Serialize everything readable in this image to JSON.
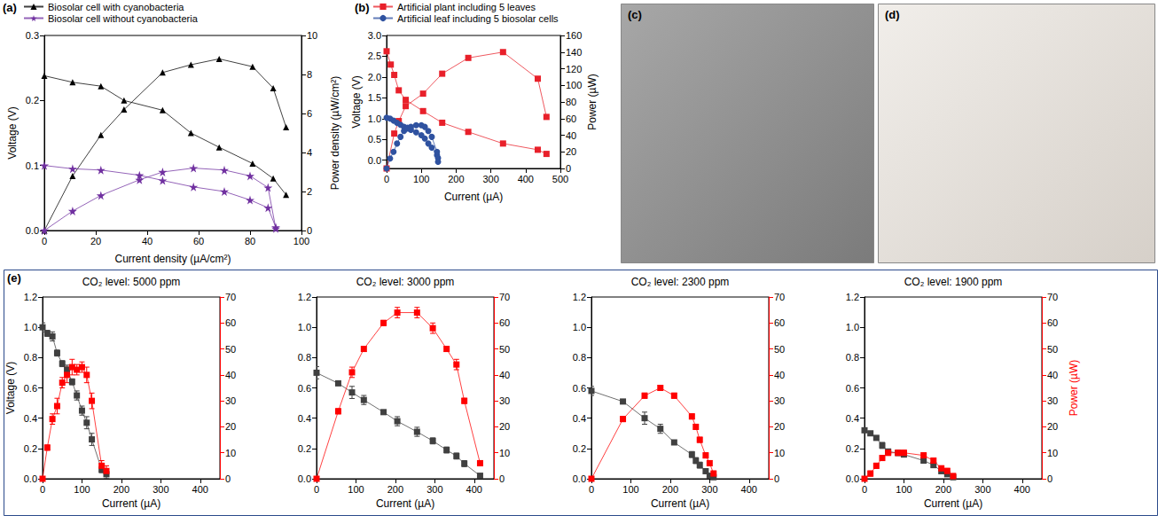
{
  "chart_data": [
    {
      "type": "line",
      "panel": "(a)",
      "legend": "top left",
      "grid": false,
      "xlabel": "Current density (µA/cm²)",
      "ylabel": "Voltage (V)",
      "y2label": "Power density (µW/cm²)",
      "xlim": [
        0,
        100
      ],
      "xticks": [
        0,
        20,
        40,
        60,
        80,
        100
      ],
      "ylim": [
        0,
        0.3
      ],
      "yticks": [
        {
          "value": 0,
          "label": "0.0"
        },
        0.1,
        0.2,
        0.3
      ],
      "y2lim": [
        0,
        10
      ],
      "y2ticks": [
        0,
        2,
        4,
        6,
        8,
        10
      ],
      "series": [
        {
          "name": "Biosolar cell with cyanobacteria",
          "color": "#000000",
          "marker": "triangle",
          "axis": "y",
          "x": [
            0,
            11,
            22,
            31,
            46,
            57,
            68,
            81,
            89,
            94
          ],
          "values": [
            0.238,
            0.228,
            0.222,
            0.2,
            0.185,
            0.15,
            0.128,
            0.103,
            0.08,
            0.055
          ]
        },
        {
          "name": "Biosolar cell with cyanobacteria",
          "color": "#000000",
          "marker": "triangle",
          "axis": "y2",
          "x": [
            0,
            11,
            22,
            31,
            46,
            57,
            68,
            81,
            89,
            94
          ],
          "values": [
            0,
            2.8,
            4.9,
            6.2,
            8.1,
            8.5,
            8.8,
            8.4,
            7.3,
            5.3
          ]
        },
        {
          "name": "Biosolar cell without cyanobacteria",
          "color": "#7030a0",
          "marker": "star",
          "axis": "y",
          "x": [
            0,
            11,
            22,
            37,
            46,
            58,
            70,
            80,
            87,
            90
          ],
          "values": [
            0.1,
            0.095,
            0.093,
            0.085,
            0.077,
            0.067,
            0.06,
            0.047,
            0.035,
            0.005
          ]
        },
        {
          "name": "Biosolar cell without cyanobacteria",
          "color": "#7030a0",
          "marker": "star",
          "axis": "y2",
          "x": [
            0,
            11,
            22,
            37,
            46,
            58,
            70,
            80,
            87,
            90
          ],
          "values": [
            0,
            1.0,
            1.8,
            2.6,
            3.0,
            3.2,
            3.1,
            2.8,
            2.2,
            0.1
          ]
        }
      ]
    },
    {
      "type": "line",
      "panel": "(b)",
      "legend": "top left",
      "grid": false,
      "xlabel": "Current (µA)",
      "ylabel": "Voltage (V)",
      "y2label": "Power (µW)",
      "xlim": [
        0,
        500
      ],
      "xticks": [
        0,
        100,
        200,
        300,
        400,
        500
      ],
      "ylim": [
        -0.2,
        3.0
      ],
      "yticks": [
        {
          "value": 0,
          "label": "0.0"
        },
        0.5,
        {
          "value": 1,
          "label": "1.0"
        },
        1.5,
        {
          "value": 2,
          "label": "2.0"
        },
        2.5,
        {
          "value": 3,
          "label": "3.0"
        }
      ],
      "y2lim": [
        0,
        160
      ],
      "y2ticks": [
        0,
        20,
        40,
        60,
        80,
        100,
        120,
        140,
        160
      ],
      "series": [
        {
          "name": "Artificial plant including 5 leaves",
          "color": "#e8202a",
          "marker": "square",
          "axis": "y",
          "x": [
            0,
            12,
            22,
            35,
            55,
            105,
            160,
            235,
            335,
            435,
            460
          ],
          "values": [
            2.62,
            2.3,
            2.05,
            1.68,
            1.45,
            1.18,
            0.9,
            0.68,
            0.4,
            0.25,
            0.15
          ]
        },
        {
          "name": "Artificial plant including 5 leaves",
          "color": "#e8202a",
          "marker": "square",
          "axis": "y2",
          "x": [
            0,
            22,
            35,
            55,
            105,
            160,
            235,
            335,
            435,
            460
          ],
          "values": [
            0,
            42,
            57,
            75,
            90,
            114,
            133,
            140,
            108,
            62
          ]
        },
        {
          "name": "Artificial leaf including 5 biosolar cells",
          "color": "#2f52a0",
          "marker": "circle",
          "axis": "y",
          "x": [
            0,
            10,
            20,
            30,
            40,
            50,
            60,
            70,
            85,
            100,
            110,
            120,
            130,
            145,
            148
          ],
          "values": [
            1.02,
            1.0,
            0.95,
            0.9,
            0.85,
            0.8,
            0.78,
            0.73,
            0.67,
            0.6,
            0.52,
            0.4,
            0.3,
            0.12,
            0.05
          ]
        },
        {
          "name": "Artificial leaf including 5 biosolar cells",
          "color": "#2f52a0",
          "marker": "circle",
          "axis": "y2",
          "x": [
            0,
            10,
            20,
            30,
            40,
            50,
            60,
            70,
            85,
            100,
            110,
            120,
            130,
            145,
            148
          ],
          "values": [
            0,
            12,
            20,
            30,
            38,
            45,
            48,
            50,
            52,
            52,
            50,
            45,
            38,
            20,
            8
          ]
        }
      ]
    },
    {
      "type": "line",
      "panel": "(e)",
      "title": "CO₂ level: 5000 ppm",
      "grid": false,
      "xlabel": "Current (µA)",
      "ylabel": "Voltage (V)",
      "xlim": [
        0,
        450
      ],
      "xticks": [
        0,
        100,
        200,
        300,
        400
      ],
      "ylim": [
        0,
        1.2
      ],
      "yticks": [
        {
          "value": 0,
          "label": "0.0"
        },
        0.2,
        0.4,
        0.6,
        0.8,
        {
          "value": 1,
          "label": "1.0"
        },
        1.2
      ],
      "y2lim": [
        0,
        70
      ],
      "y2ticks": [
        0,
        10,
        20,
        30,
        40,
        50,
        60,
        70
      ],
      "series": [
        {
          "color": "#404040",
          "marker": "square",
          "axis": "y",
          "x": [
            0,
            12,
            25,
            37,
            50,
            62,
            75,
            87,
            100,
            112,
            125,
            150,
            162
          ],
          "values": [
            1.0,
            0.96,
            0.94,
            0.83,
            0.76,
            0.72,
            0.64,
            0.55,
            0.45,
            0.37,
            0.26,
            0.06,
            0.03
          ],
          "errors": [
            0.03,
            0.02,
            0.03,
            0.02,
            0.02,
            0.03,
            0.02,
            0.03,
            0.03,
            0.04,
            0.04,
            0.02,
            0.03
          ]
        },
        {
          "color": "#ff0000",
          "marker": "square",
          "axis": "y2",
          "x": [
            0,
            12,
            25,
            37,
            50,
            62,
            75,
            87,
            100,
            112,
            125,
            150,
            162
          ],
          "values": [
            0,
            12,
            23,
            28,
            37,
            40,
            43,
            42,
            43,
            40,
            30,
            5,
            3
          ],
          "errors": [
            0,
            1,
            2,
            3,
            2,
            3,
            3,
            2,
            2,
            3,
            3,
            2,
            2
          ]
        }
      ]
    },
    {
      "type": "line",
      "title": "CO₂ level: 3000 ppm",
      "grid": false,
      "xlabel": "Current (µA)",
      "xlim": [
        0,
        450
      ],
      "xticks": [
        0,
        100,
        200,
        300,
        400
      ],
      "ylim": [
        0,
        1.2
      ],
      "yticks": [
        {
          "value": 0,
          "label": "0.0"
        },
        0.2,
        0.4,
        0.6,
        0.8,
        {
          "value": 1,
          "label": "1.0"
        },
        1.2
      ],
      "y2lim": [
        0,
        70
      ],
      "y2ticks": [
        0,
        10,
        20,
        30,
        40,
        50,
        60,
        70
      ],
      "series": [
        {
          "color": "#404040",
          "marker": "square",
          "axis": "y",
          "x": [
            0,
            55,
            90,
            120,
            170,
            205,
            255,
            295,
            330,
            355,
            375,
            415
          ],
          "values": [
            0.7,
            0.63,
            0.57,
            0.52,
            0.44,
            0.38,
            0.31,
            0.25,
            0.19,
            0.15,
            0.1,
            0.02
          ],
          "errors": [
            0.04,
            0.01,
            0.04,
            0.03,
            0.01,
            0.03,
            0.03,
            0.02,
            0.02,
            0.02,
            0.02,
            0.01
          ]
        },
        {
          "color": "#ff0000",
          "marker": "square",
          "axis": "y2",
          "x": [
            0,
            55,
            90,
            120,
            170,
            205,
            255,
            295,
            330,
            355,
            375,
            415
          ],
          "values": [
            0,
            26,
            41,
            50,
            60,
            64,
            64,
            58,
            50,
            44,
            30,
            6
          ],
          "errors": [
            0,
            1,
            2,
            1,
            1,
            2,
            2,
            2,
            1,
            2,
            1,
            1
          ]
        }
      ]
    },
    {
      "type": "line",
      "title": "CO₂ level: 2300 ppm",
      "grid": false,
      "xlabel": "Current (µA)",
      "xlim": [
        0,
        450
      ],
      "xticks": [
        0,
        100,
        200,
        300,
        400
      ],
      "ylim": [
        0,
        1.2
      ],
      "yticks": [
        {
          "value": 0,
          "label": "0.0"
        },
        0.2,
        0.4,
        0.6,
        0.8,
        {
          "value": 1,
          "label": "1.0"
        },
        1.2
      ],
      "y2lim": [
        0,
        70
      ],
      "y2ticks": [
        0,
        10,
        20,
        30,
        40,
        50,
        60,
        70
      ],
      "series": [
        {
          "color": "#404040",
          "marker": "square",
          "axis": "y",
          "x": [
            0,
            80,
            135,
            175,
            210,
            255,
            265,
            275,
            290,
            300,
            310
          ],
          "values": [
            0.58,
            0.51,
            0.4,
            0.33,
            0.24,
            0.16,
            0.12,
            0.09,
            0.05,
            0.02,
            0.01
          ],
          "errors": [
            0.03,
            0.01,
            0.04,
            0.03,
            0.01,
            0.02,
            0.02,
            0.02,
            0.01,
            0.01,
            0.01
          ]
        },
        {
          "color": "#ff0000",
          "marker": "square",
          "axis": "y2",
          "x": [
            0,
            80,
            135,
            175,
            210,
            255,
            265,
            275,
            290,
            300,
            310
          ],
          "values": [
            0,
            23,
            32,
            35,
            32,
            24,
            20,
            15,
            9,
            6,
            2
          ],
          "errors": [
            0,
            1,
            1,
            1,
            1,
            1,
            1,
            1,
            1,
            1,
            1
          ]
        }
      ]
    },
    {
      "type": "line",
      "title": "CO₂ level: 1900 ppm",
      "grid": false,
      "xlabel": "Current (µA)",
      "y2label": "Power (µW)",
      "xlim": [
        0,
        450
      ],
      "xticks": [
        0,
        100,
        200,
        300,
        400
      ],
      "ylim": [
        0,
        1.2
      ],
      "yticks": [
        {
          "value": 0,
          "label": "0.0"
        },
        0.2,
        0.4,
        0.6,
        0.8,
        {
          "value": 1,
          "label": "1.0"
        },
        1.2
      ],
      "y2lim": [
        0,
        70
      ],
      "y2ticks": [
        0,
        10,
        20,
        30,
        40,
        50,
        60,
        70
      ],
      "series": [
        {
          "color": "#404040",
          "marker": "square",
          "axis": "y",
          "x": [
            0,
            15,
            30,
            45,
            60,
            85,
            100,
            150,
            175,
            195,
            210,
            225
          ],
          "values": [
            0.32,
            0.3,
            0.27,
            0.22,
            0.18,
            0.17,
            0.16,
            0.12,
            0.09,
            0.05,
            0.03,
            0.01
          ],
          "errors": [
            0.01,
            0.01,
            0.01,
            0.02,
            0.01,
            0.01,
            0.01,
            0.01,
            0.01,
            0.01,
            0.01,
            0.01
          ]
        },
        {
          "color": "#ff0000",
          "marker": "square",
          "axis": "y2",
          "x": [
            0,
            15,
            30,
            45,
            60,
            85,
            100,
            150,
            175,
            195,
            210,
            225
          ],
          "values": [
            0,
            2,
            5,
            8,
            10,
            10,
            10,
            9,
            7,
            4,
            3,
            1
          ],
          "errors": [
            0,
            1,
            1,
            1,
            1,
            1,
            1,
            1,
            1,
            1,
            1,
            1
          ]
        }
      ]
    }
  ],
  "photos": [
    {
      "panel": "(c)"
    },
    {
      "panel": "(d)"
    }
  ]
}
